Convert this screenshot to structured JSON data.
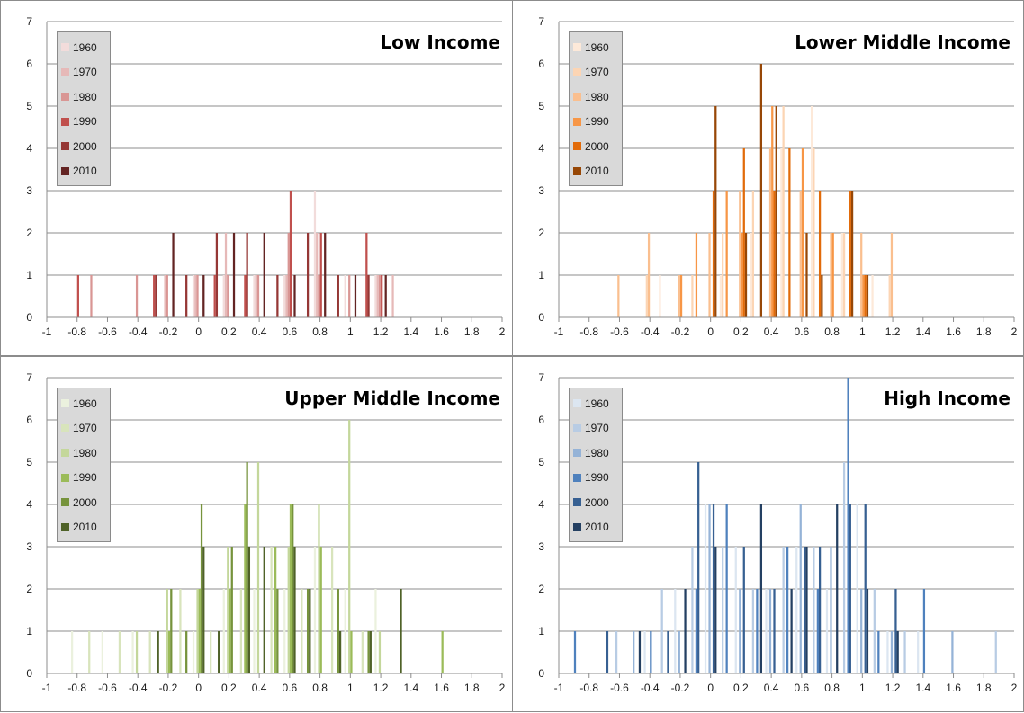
{
  "chart_data": [
    {
      "type": "bar",
      "title": "Low Income",
      "xlabel": "",
      "ylabel": "",
      "xlim": [
        -1,
        2
      ],
      "ylim": [
        0,
        7
      ],
      "x_ticks": [
        "-1",
        "-0.8",
        "-0.6",
        "-0.4",
        "-0.2",
        "0",
        "0.2",
        "0.4",
        "0.6",
        "0.8",
        "1",
        "1.2",
        "1.4",
        "1.6",
        "1.8",
        "2"
      ],
      "y_ticks": [
        "0",
        "1",
        "2",
        "3",
        "4",
        "5",
        "6",
        "7"
      ],
      "grid": true,
      "legend_position": "top-left",
      "series": [
        {
          "name": "1960",
          "color": "#f2dcdb",
          "points": [
            [
              0.0,
              1
            ],
            [
              0.2,
              1
            ],
            [
              0.4,
              1
            ],
            [
              0.6,
              1
            ],
            [
              0.8,
              3
            ],
            [
              1.0,
              1
            ],
            [
              1.2,
              1
            ]
          ]
        },
        {
          "name": "1970",
          "color": "#e6b9b8",
          "points": [
            [
              -0.2,
              1
            ],
            [
              0.0,
              1
            ],
            [
              0.2,
              2
            ],
            [
              0.4,
              1
            ],
            [
              0.6,
              1
            ],
            [
              0.8,
              2
            ],
            [
              1.2,
              1
            ],
            [
              1.3,
              1
            ]
          ]
        },
        {
          "name": "1980",
          "color": "#d99694",
          "points": [
            [
              -0.7,
              1
            ],
            [
              -0.4,
              1
            ],
            [
              -0.2,
              1
            ],
            [
              0.0,
              1
            ],
            [
              0.2,
              1
            ],
            [
              0.4,
              1
            ],
            [
              0.6,
              2
            ],
            [
              0.8,
              1
            ],
            [
              1.0,
              1
            ],
            [
              1.2,
              1
            ]
          ]
        },
        {
          "name": "1990",
          "color": "#c0504d",
          "points": [
            [
              -0.8,
              1
            ],
            [
              -0.3,
              1
            ],
            [
              0.1,
              1
            ],
            [
              0.3,
              1
            ],
            [
              0.6,
              3
            ],
            [
              0.8,
              2
            ],
            [
              1.1,
              2
            ],
            [
              1.2,
              1
            ]
          ]
        },
        {
          "name": "2000",
          "color": "#953735",
          "points": [
            [
              -0.3,
              1
            ],
            [
              -0.1,
              1
            ],
            [
              0.1,
              2
            ],
            [
              0.3,
              2
            ],
            [
              0.5,
              1
            ],
            [
              0.7,
              2
            ],
            [
              0.9,
              1
            ],
            [
              1.1,
              1
            ]
          ]
        },
        {
          "name": "2010",
          "color": "#632423",
          "points": [
            [
              -0.2,
              2
            ],
            [
              0.0,
              1
            ],
            [
              0.2,
              2
            ],
            [
              0.4,
              2
            ],
            [
              0.6,
              1
            ],
            [
              0.8,
              2
            ],
            [
              1.0,
              1
            ],
            [
              1.2,
              1
            ]
          ]
        }
      ]
    },
    {
      "type": "bar",
      "title": "Lower Middle Income",
      "xlabel": "",
      "ylabel": "",
      "xlim": [
        -1,
        2
      ],
      "ylim": [
        0,
        7
      ],
      "x_ticks": [
        "-1",
        "-0.8",
        "-0.6",
        "-0.4",
        "-0.2",
        "0",
        "0.2",
        "0.4",
        "0.6",
        "0.8",
        "1",
        "1.2",
        "1.4",
        "1.6",
        "1.8",
        "2"
      ],
      "y_ticks": [
        "0",
        "1",
        "2",
        "3",
        "4",
        "5",
        "6",
        "7"
      ],
      "grid": true,
      "legend_position": "top-left",
      "series": [
        {
          "name": "1960",
          "color": "#fde9d9",
          "points": [
            [
              -0.3,
              1
            ],
            [
              0.1,
              1
            ],
            [
              0.3,
              2
            ],
            [
              0.5,
              4
            ],
            [
              0.7,
              5
            ],
            [
              0.9,
              2
            ],
            [
              1.1,
              1
            ]
          ]
        },
        {
          "name": "1970",
          "color": "#fcd5b4",
          "points": [
            [
              -0.4,
              1
            ],
            [
              -0.1,
              1
            ],
            [
              0.1,
              2
            ],
            [
              0.3,
              3
            ],
            [
              0.5,
              5
            ],
            [
              0.7,
              4
            ],
            [
              0.9,
              2
            ],
            [
              1.2,
              1
            ]
          ]
        },
        {
          "name": "1980",
          "color": "#fabf8f",
          "points": [
            [
              -0.6,
              1
            ],
            [
              -0.4,
              2
            ],
            [
              -0.2,
              1
            ],
            [
              0.0,
              2
            ],
            [
              0.2,
              3
            ],
            [
              0.4,
              4
            ],
            [
              0.6,
              3
            ],
            [
              0.8,
              2
            ],
            [
              1.0,
              2
            ],
            [
              1.2,
              2
            ]
          ]
        },
        {
          "name": "1990",
          "color": "#f79646",
          "points": [
            [
              -0.2,
              1
            ],
            [
              -0.1,
              2
            ],
            [
              0.1,
              3
            ],
            [
              0.2,
              2
            ],
            [
              0.4,
              5
            ],
            [
              0.6,
              4
            ],
            [
              0.8,
              2
            ],
            [
              1.0,
              1
            ]
          ]
        },
        {
          "name": "2000",
          "color": "#e26b0a",
          "points": [
            [
              0.0,
              3
            ],
            [
              0.2,
              4
            ],
            [
              0.4,
              3
            ],
            [
              0.5,
              4
            ],
            [
              0.7,
              3
            ],
            [
              0.9,
              3
            ],
            [
              1.0,
              1
            ]
          ]
        },
        {
          "name": "2010",
          "color": "#974706",
          "points": [
            [
              0.0,
              5
            ],
            [
              0.2,
              2
            ],
            [
              0.3,
              6
            ],
            [
              0.4,
              5
            ],
            [
              0.6,
              2
            ],
            [
              0.7,
              1
            ],
            [
              0.9,
              3
            ],
            [
              1.0,
              1
            ]
          ]
        }
      ]
    },
    {
      "type": "bar",
      "title": "Upper Middle Income",
      "xlabel": "",
      "ylabel": "",
      "xlim": [
        -1,
        2
      ],
      "ylim": [
        0,
        7
      ],
      "x_ticks": [
        "-1",
        "-0.8",
        "-0.6",
        "-0.4",
        "-0.2",
        "0",
        "0.2",
        "0.4",
        "0.6",
        "0.8",
        "1",
        "1.2",
        "1.4",
        "1.6",
        "1.8",
        "2"
      ],
      "y_ticks": [
        "0",
        "1",
        "2",
        "3",
        "4",
        "5",
        "6",
        "7"
      ],
      "grid": true,
      "legend_position": "top-left",
      "series": [
        {
          "name": "1960",
          "color": "#ebf1de",
          "points": [
            [
              -0.8,
              1
            ],
            [
              -0.6,
              1
            ],
            [
              -0.4,
              1
            ],
            [
              0.0,
              1
            ],
            [
              0.2,
              2
            ],
            [
              0.4,
              2
            ],
            [
              0.6,
              2
            ],
            [
              0.8,
              3
            ],
            [
              1.0,
              2
            ],
            [
              1.2,
              2
            ]
          ]
        },
        {
          "name": "1970",
          "color": "#d8e4bc",
          "points": [
            [
              -0.7,
              1
            ],
            [
              -0.5,
              1
            ],
            [
              -0.3,
              1
            ],
            [
              -0.1,
              2
            ],
            [
              0.1,
              1
            ],
            [
              0.3,
              2
            ],
            [
              0.5,
              3
            ],
            [
              0.7,
              2
            ],
            [
              0.9,
              3
            ],
            [
              1.1,
              1
            ]
          ]
        },
        {
          "name": "1980",
          "color": "#c4d79b",
          "points": [
            [
              -0.4,
              1
            ],
            [
              -0.2,
              2
            ],
            [
              0.0,
              2
            ],
            [
              0.2,
              3
            ],
            [
              0.4,
              5
            ],
            [
              0.6,
              3
            ],
            [
              0.8,
              4
            ],
            [
              1.0,
              6
            ],
            [
              1.2,
              1
            ]
          ]
        },
        {
          "name": "1990",
          "color": "#9bbb59",
          "points": [
            [
              -0.2,
              1
            ],
            [
              0.0,
              2
            ],
            [
              0.2,
              2
            ],
            [
              0.3,
              4
            ],
            [
              0.5,
              3
            ],
            [
              0.6,
              4
            ],
            [
              0.8,
              3
            ],
            [
              1.0,
              1
            ],
            [
              1.6,
              1
            ]
          ]
        },
        {
          "name": "2000",
          "color": "#76933c",
          "points": [
            [
              -0.2,
              2
            ],
            [
              -0.1,
              1
            ],
            [
              0.0,
              4
            ],
            [
              0.2,
              3
            ],
            [
              0.3,
              5
            ],
            [
              0.5,
              2
            ],
            [
              0.6,
              4
            ],
            [
              0.7,
              2
            ],
            [
              0.9,
              2
            ],
            [
              1.1,
              1
            ]
          ]
        },
        {
          "name": "2010",
          "color": "#4f6228",
          "points": [
            [
              -0.3,
              1
            ],
            [
              0.0,
              3
            ],
            [
              0.1,
              1
            ],
            [
              0.3,
              3
            ],
            [
              0.4,
              3
            ],
            [
              0.6,
              3
            ],
            [
              0.7,
              2
            ],
            [
              0.9,
              1
            ],
            [
              1.1,
              1
            ],
            [
              1.3,
              2
            ]
          ]
        }
      ]
    },
    {
      "type": "bar",
      "title": "High Income",
      "xlabel": "",
      "ylabel": "",
      "xlim": [
        -1,
        2
      ],
      "ylim": [
        0,
        7
      ],
      "x_ticks": [
        "-1",
        "-0.8",
        "-0.6",
        "-0.4",
        "-0.2",
        "0",
        "0.2",
        "0.4",
        "0.6",
        "0.8",
        "1",
        "1.2",
        "1.4",
        "1.6",
        "1.8",
        "2"
      ],
      "y_ticks": [
        "0",
        "1",
        "2",
        "3",
        "4",
        "5",
        "6",
        "7"
      ],
      "grid": true,
      "legend_position": "top-left",
      "series": [
        {
          "name": "1960",
          "color": "#dce6f1",
          "points": [
            [
              -0.4,
              1
            ],
            [
              -0.2,
              2
            ],
            [
              0.0,
              4
            ],
            [
              0.2,
              3
            ],
            [
              0.4,
              2
            ],
            [
              0.6,
              3
            ],
            [
              0.8,
              2
            ],
            [
              1.0,
              4
            ],
            [
              1.2,
              1
            ],
            [
              1.4,
              1
            ]
          ]
        },
        {
          "name": "1970",
          "color": "#b8cce4",
          "points": [
            [
              -0.6,
              1
            ],
            [
              -0.3,
              2
            ],
            [
              -0.1,
              3
            ],
            [
              0.1,
              3
            ],
            [
              0.3,
              2
            ],
            [
              0.5,
              3
            ],
            [
              0.7,
              3
            ],
            [
              0.9,
              5
            ],
            [
              1.1,
              2
            ],
            [
              1.3,
              1
            ],
            [
              1.9,
              1
            ]
          ]
        },
        {
          "name": "1980",
          "color": "#95b3d7",
          "points": [
            [
              -0.5,
              1
            ],
            [
              -0.2,
              1
            ],
            [
              0.0,
              4
            ],
            [
              0.2,
              2
            ],
            [
              0.4,
              2
            ],
            [
              0.6,
              4
            ],
            [
              0.8,
              3
            ],
            [
              1.0,
              2
            ],
            [
              1.2,
              1
            ],
            [
              1.6,
              1
            ]
          ]
        },
        {
          "name": "1990",
          "color": "#4f81bd",
          "points": [
            [
              -0.9,
              1
            ],
            [
              -0.4,
              1
            ],
            [
              -0.1,
              2
            ],
            [
              0.1,
              4
            ],
            [
              0.3,
              2
            ],
            [
              0.5,
              3
            ],
            [
              0.7,
              2
            ],
            [
              0.9,
              7
            ],
            [
              1.1,
              1
            ],
            [
              1.4,
              2
            ]
          ]
        },
        {
          "name": "2000",
          "color": "#376092",
          "points": [
            [
              -0.7,
              1
            ],
            [
              -0.3,
              1
            ],
            [
              -0.1,
              5
            ],
            [
              0.0,
              4
            ],
            [
              0.2,
              3
            ],
            [
              0.4,
              2
            ],
            [
              0.6,
              3
            ],
            [
              0.7,
              3
            ],
            [
              0.9,
              4
            ],
            [
              1.0,
              4
            ],
            [
              1.2,
              2
            ]
          ]
        },
        {
          "name": "2010",
          "color": "#244062",
          "points": [
            [
              -0.5,
              1
            ],
            [
              -0.2,
              2
            ],
            [
              0.0,
              3
            ],
            [
              0.3,
              4
            ],
            [
              0.5,
              2
            ],
            [
              0.6,
              3
            ],
            [
              0.8,
              4
            ],
            [
              1.0,
              2
            ],
            [
              1.2,
              1
            ]
          ]
        }
      ]
    }
  ]
}
